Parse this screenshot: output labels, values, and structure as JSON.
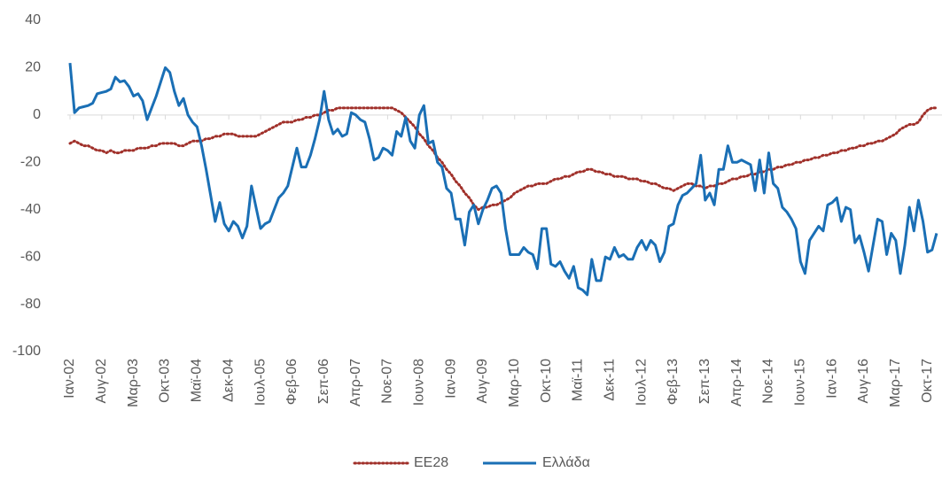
{
  "chart_data": {
    "type": "line",
    "categories": [
      "Ιαν-02",
      null,
      null,
      null,
      null,
      null,
      null,
      "Αυγ-02",
      null,
      null,
      null,
      null,
      null,
      null,
      "Μαρ-03",
      null,
      null,
      null,
      null,
      null,
      null,
      "Οκτ-03",
      null,
      null,
      null,
      null,
      null,
      null,
      "Μαϊ-04",
      null,
      null,
      null,
      null,
      null,
      null,
      "Δεκ-04",
      null,
      null,
      null,
      null,
      null,
      null,
      "Ιουλ-05",
      null,
      null,
      null,
      null,
      null,
      null,
      "Φεβ-06",
      null,
      null,
      null,
      null,
      null,
      null,
      "Σεπ-06",
      null,
      null,
      null,
      null,
      null,
      null,
      "Απρ-07",
      null,
      null,
      null,
      null,
      null,
      null,
      "Νοε-07",
      null,
      null,
      null,
      null,
      null,
      null,
      "Ιουν-08",
      null,
      null,
      null,
      null,
      null,
      null,
      "Ιαν-09",
      null,
      null,
      null,
      null,
      null,
      null,
      "Αυγ-09",
      null,
      null,
      null,
      null,
      null,
      null,
      "Μαρ-10",
      null,
      null,
      null,
      null,
      null,
      null,
      "Οκτ-10",
      null,
      null,
      null,
      null,
      null,
      null,
      "Μαϊ-11",
      null,
      null,
      null,
      null,
      null,
      null,
      "Δεκ-11",
      null,
      null,
      null,
      null,
      null,
      null,
      "Ιουλ-12",
      null,
      null,
      null,
      null,
      null,
      null,
      "Φεβ-13",
      null,
      null,
      null,
      null,
      null,
      null,
      "Σεπ-13",
      null,
      null,
      null,
      null,
      null,
      null,
      "Απρ-14",
      null,
      null,
      null,
      null,
      null,
      null,
      "Νοε-14",
      null,
      null,
      null,
      null,
      null,
      null,
      "Ιουν-15",
      null,
      null,
      null,
      null,
      null,
      null,
      "Ιαν-16",
      null,
      null,
      null,
      null,
      null,
      null,
      "Αυγ-16",
      null,
      null,
      null,
      null,
      null,
      null,
      "Μαρ-17",
      null,
      null,
      null,
      null,
      null,
      null,
      "Οκτ-17",
      null,
      null
    ],
    "series": [
      {
        "name": "EE28",
        "color": "#a0302a",
        "dash": true,
        "values": [
          -12,
          -11,
          -12,
          -13,
          -13,
          -14,
          -15,
          -15,
          -16,
          -15,
          -16,
          -16,
          -15,
          -15,
          -15,
          -14,
          -14,
          -14,
          -13,
          -13,
          -12,
          -12,
          -12,
          -12,
          -13,
          -13,
          -12,
          -11,
          -11,
          -11,
          -10,
          -10,
          -9,
          -9,
          -8,
          -8,
          -8,
          -9,
          -9,
          -9,
          -9,
          -9,
          -8,
          -7,
          -6,
          -5,
          -4,
          -3,
          -3,
          -3,
          -2,
          -2,
          -1,
          -1,
          0,
          0,
          1,
          2,
          2,
          3,
          3,
          3,
          3,
          3,
          3,
          3,
          3,
          3,
          3,
          3,
          3,
          3,
          2,
          1,
          -1,
          -3,
          -5,
          -8,
          -10,
          -13,
          -15,
          -18,
          -20,
          -23,
          -25,
          -28,
          -30,
          -33,
          -35,
          -38,
          -40,
          -39,
          -39,
          -38,
          -38,
          -37,
          -36,
          -35,
          -33,
          -32,
          -31,
          -30,
          -30,
          -29,
          -29,
          -29,
          -28,
          -27,
          -27,
          -26,
          -26,
          -25,
          -24,
          -24,
          -23,
          -23,
          -24,
          -24,
          -25,
          -25,
          -26,
          -26,
          -26,
          -27,
          -27,
          -27,
          -28,
          -28,
          -29,
          -29,
          -30,
          -31,
          -31,
          -32,
          -31,
          -30,
          -29,
          -29,
          -30,
          -30,
          -31,
          -30,
          -30,
          -29,
          -29,
          -28,
          -27,
          -27,
          -26,
          -26,
          -25,
          -25,
          -24,
          -24,
          -23,
          -23,
          -22,
          -22,
          -21,
          -21,
          -20,
          -20,
          -19,
          -19,
          -18,
          -18,
          -17,
          -17,
          -16,
          -16,
          -15,
          -15,
          -14,
          -14,
          -13,
          -13,
          -12,
          -12,
          -11,
          -11,
          -10,
          -9,
          -8,
          -6,
          -5,
          -4,
          -4,
          -3,
          0,
          2,
          3,
          3
        ]
      },
      {
        "name": "Ελλάδα",
        "color": "#1a6fb5",
        "dash": false,
        "values": [
          22,
          1,
          3,
          3.5,
          4,
          5,
          9,
          9.5,
          10,
          11,
          16,
          14,
          14.5,
          12,
          8,
          9,
          6,
          -2,
          3,
          8,
          14,
          20,
          18,
          10,
          4,
          7,
          0,
          -3,
          -5,
          -13,
          -23,
          -34,
          -45,
          -37,
          -46,
          -49,
          -45,
          -47,
          -52,
          -47,
          -30,
          -39,
          -48,
          -46,
          -45,
          -40,
          -35,
          -33,
          -30,
          -22,
          -14,
          -22,
          -22,
          -17,
          -10,
          -2,
          10,
          -2,
          -8,
          -6,
          -9,
          -8,
          1,
          0,
          -2,
          -3,
          -10,
          -19,
          -18,
          -14,
          -15,
          -17,
          -7,
          -9,
          -1,
          -11,
          -14,
          0,
          4,
          -12,
          -11,
          -20,
          -22,
          -31,
          -33,
          -44,
          -44,
          -55,
          -41,
          -38,
          -46,
          -40,
          -36,
          -31,
          -30,
          -33,
          -48,
          -59,
          -59,
          -59,
          -56,
          -58,
          -59,
          -65,
          -48,
          -48,
          -63,
          -64,
          -62,
          -66,
          -69,
          -64,
          -73,
          -74,
          -76,
          -61,
          -70,
          -70,
          -60,
          -61,
          -56,
          -60,
          -59,
          -61,
          -61,
          -56,
          -53,
          -57,
          -53,
          -55,
          -62,
          -58,
          -47,
          -46,
          -38,
          -34,
          -33,
          -31,
          -29,
          -17,
          -36,
          -33,
          -38,
          -23,
          -23,
          -13,
          -20,
          -20,
          -19,
          -20,
          -21,
          -32,
          -19,
          -33,
          -16,
          -29,
          -31,
          -39,
          -41,
          -44,
          -48,
          -62,
          -67,
          -53,
          -50,
          -47,
          -49,
          -38,
          -37,
          -35,
          -45,
          -39,
          -40,
          -54,
          -51,
          -58,
          -66,
          -55,
          -44,
          -45,
          -59,
          -50,
          -53,
          -67,
          -55,
          -39,
          -49,
          -36,
          -45,
          -58,
          -57,
          -50
        ]
      }
    ],
    "ylim": [
      -100,
      40
    ],
    "yticks": [
      -100,
      -80,
      -60,
      -40,
      -20,
      0,
      20,
      40
    ],
    "grid": false,
    "legend": "bottom"
  }
}
